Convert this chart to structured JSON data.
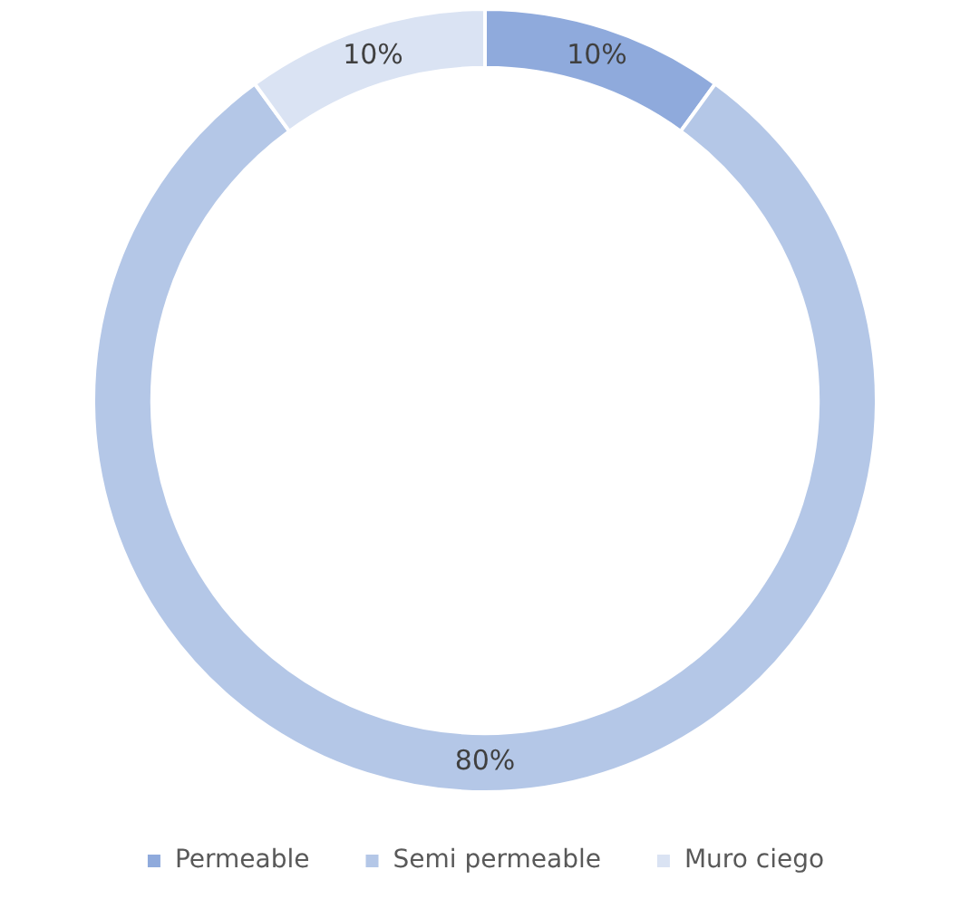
{
  "chart_data": {
    "type": "donut",
    "categories": [
      "Permeable",
      "Semi permeable",
      "Muro ciego"
    ],
    "values": [
      10,
      80,
      10
    ],
    "colors": [
      "#8faadc",
      "#b4c7e7",
      "#dae3f3"
    ],
    "value_labels": [
      "10%",
      "80%",
      "10%"
    ],
    "legend": "bottom"
  }
}
